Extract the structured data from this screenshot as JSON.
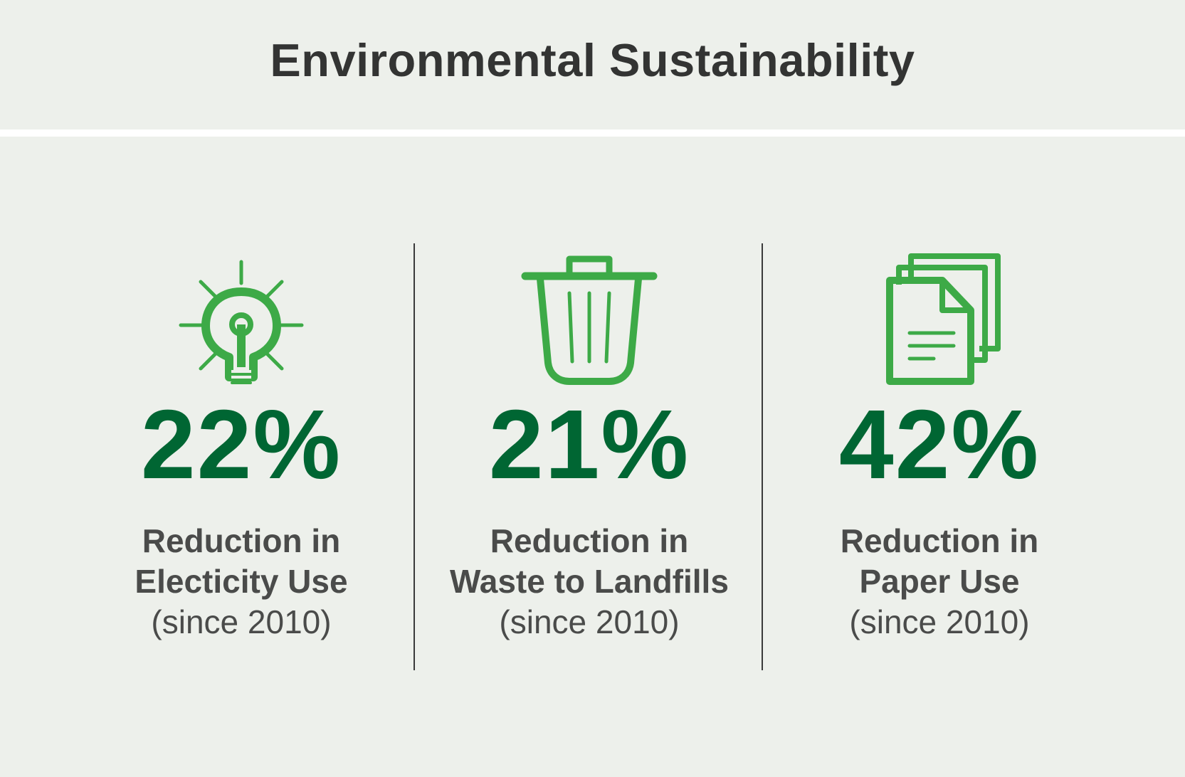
{
  "title": "Environmental Sustainability",
  "accent_color": "#3daa47",
  "value_color": "#006633",
  "stats": [
    {
      "icon": "lightbulb-icon",
      "value": "22%",
      "label_line1": "Reduction in",
      "label_line2": "Electicity Use",
      "note": "(since 2010)"
    },
    {
      "icon": "trash-can-icon",
      "value": "21%",
      "label_line1": "Reduction in",
      "label_line2": "Waste to Landfills",
      "note": "(since 2010)"
    },
    {
      "icon": "documents-icon",
      "value": "42%",
      "label_line1": "Reduction in",
      "label_line2": "Paper Use",
      "note": "(since 2010)"
    }
  ]
}
